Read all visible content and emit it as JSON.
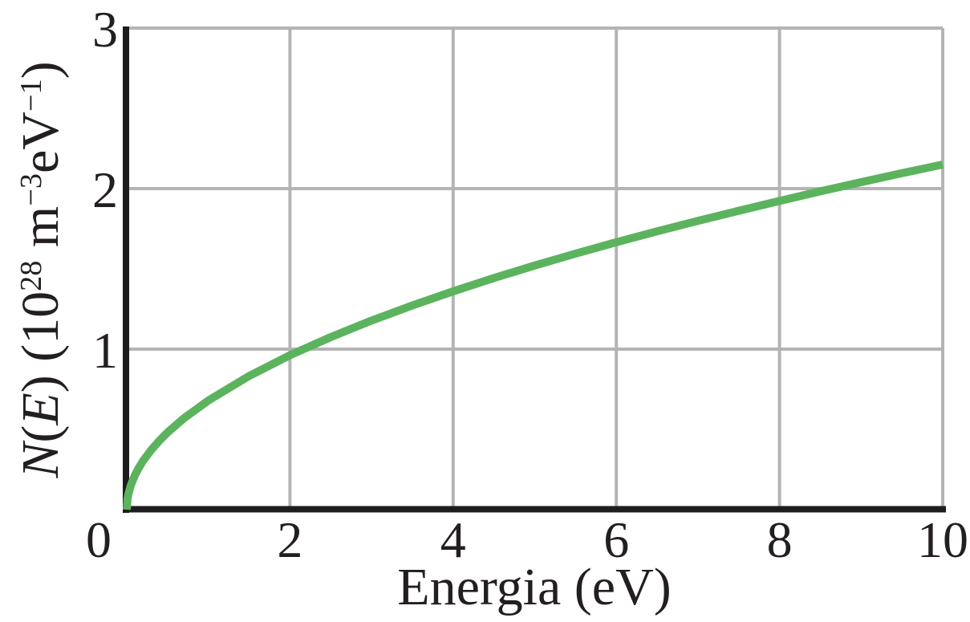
{
  "chart_data": {
    "type": "line",
    "title": "",
    "xlabel": "Energia (eV)",
    "ylabel": "N(E) (10²⁸ m⁻³eV⁻¹)",
    "ylabel_parts": [
      {
        "text": "N",
        "style": "italic"
      },
      {
        "text": "(",
        "style": "normal"
      },
      {
        "text": "E",
        "style": "italic"
      },
      {
        "text": ") (10",
        "style": "normal"
      },
      {
        "text": "28",
        "style": "sup"
      },
      {
        "text": " m",
        "style": "normal"
      },
      {
        "text": "−3",
        "style": "sup"
      },
      {
        "text": "eV",
        "style": "normal"
      },
      {
        "text": "−1",
        "style": "sup"
      },
      {
        "text": ")",
        "style": "normal"
      }
    ],
    "xlim": [
      0,
      10
    ],
    "ylim": [
      0,
      3
    ],
    "x_ticks": [
      0,
      2,
      4,
      6,
      8,
      10
    ],
    "y_ticks": [
      1,
      2,
      3
    ],
    "grid": true,
    "legend": false,
    "series": [
      {
        "name": "N(E)",
        "color": "#5cb35e",
        "x": [
          0,
          0.01,
          0.02,
          0.05,
          0.1,
          0.15,
          0.2,
          0.3,
          0.4,
          0.5,
          0.7,
          1,
          1.5,
          2,
          2.5,
          3,
          3.5,
          4,
          4.5,
          5,
          5.5,
          6,
          6.5,
          7,
          7.5,
          8,
          8.5,
          9,
          9.5,
          10
        ],
        "y": [
          0,
          0.068,
          0.096,
          0.152,
          0.215,
          0.263,
          0.304,
          0.372,
          0.43,
          0.481,
          0.569,
          0.68,
          0.833,
          0.962,
          1.075,
          1.178,
          1.272,
          1.36,
          1.443,
          1.521,
          1.595,
          1.666,
          1.734,
          1.799,
          1.862,
          1.923,
          1.983,
          2.04,
          2.096,
          2.15
        ]
      }
    ],
    "colors": {
      "grid": "#b4b4b4",
      "axis": "#1d1d1d",
      "text": "#231f20",
      "background": "#ffffff",
      "curve": "#5cb35e"
    }
  }
}
